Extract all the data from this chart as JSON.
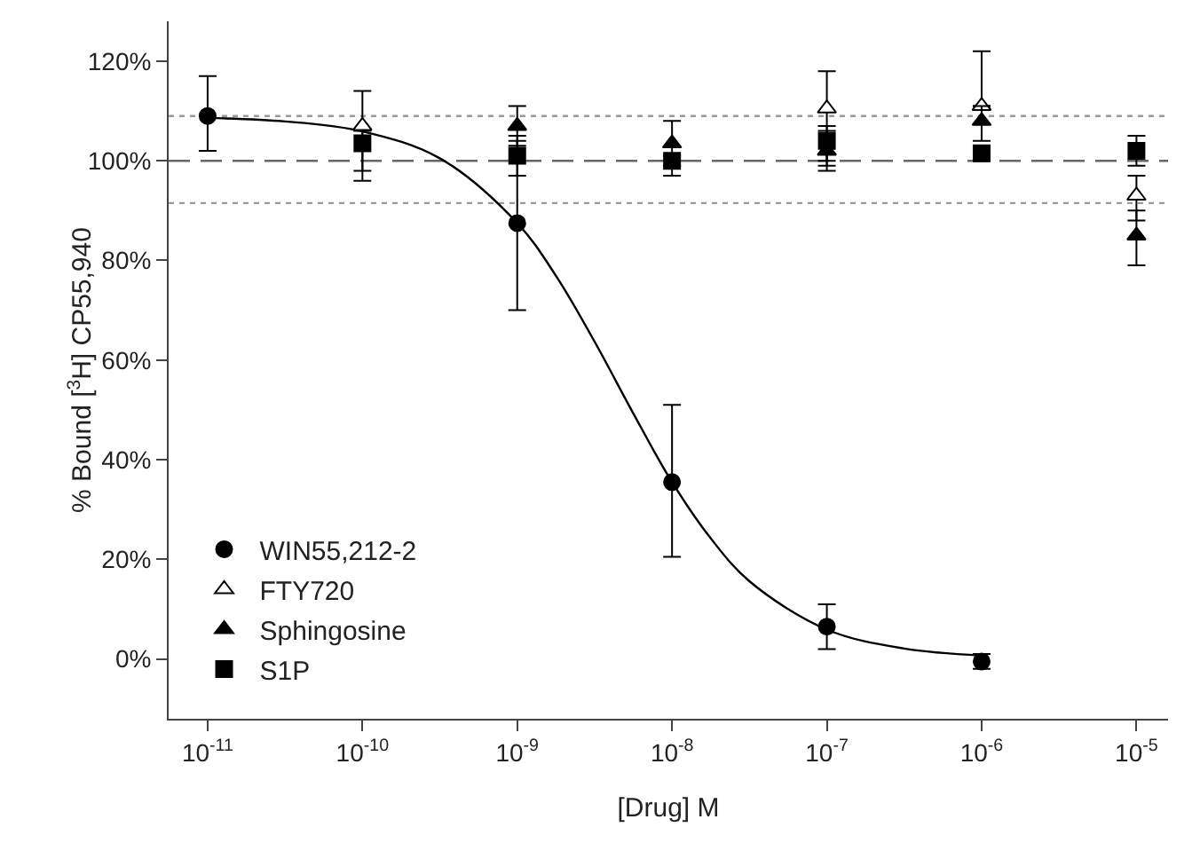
{
  "chart_data": {
    "type": "scatter",
    "xlabel": "[Drug] M",
    "ylabel": "% Bound [$^{3}$H] CP55,940",
    "x": [
      1e-11,
      1e-10,
      1e-09,
      1e-08,
      1e-07,
      1e-06,
      1e-05
    ],
    "series": [
      {
        "name": "WIN55,212-2",
        "color": "#000000",
        "marker": "circle",
        "values": [
          109,
          null,
          87.5,
          35.5,
          6.5,
          -0.5,
          null
        ],
        "errors": [
          [
            102,
            117
          ],
          null,
          [
            70,
            105
          ],
          [
            20.5,
            51
          ],
          [
            2,
            11
          ],
          [
            -2,
            1
          ],
          null
        ]
      },
      {
        "name": "FTY720",
        "color": "#ffffff",
        "marker": "triangle",
        "values": [
          null,
          107,
          null,
          null,
          110.5,
          111,
          93
        ],
        "errors": [
          null,
          [
            96,
            114
          ],
          null,
          null,
          [
            100,
            118
          ],
          [
            111,
            122
          ],
          [
            88,
            97
          ]
        ]
      },
      {
        "name": "Sphingosine",
        "color": "#000000",
        "marker": "triangle",
        "values": [
          null,
          null,
          107,
          103.5,
          102,
          108,
          85
        ],
        "errors": [
          null,
          null,
          [
            103,
            111
          ],
          [
            99,
            108
          ],
          [
            98,
            106
          ],
          [
            104,
            111
          ],
          [
            79,
            90
          ]
        ]
      },
      {
        "name": "S1P",
        "color": "#000000",
        "marker": "square",
        "values": [
          null,
          103.5,
          101,
          100,
          104,
          101.5,
          102
        ],
        "errors": [
          null,
          [
            98,
            106
          ],
          [
            97,
            104
          ],
          [
            97,
            101
          ],
          [
            99,
            107
          ],
          [
            100,
            103
          ],
          [
            99,
            105
          ]
        ]
      },
      {
        "type": "line",
        "color": "#000000",
        "marker": "none",
        "line_style": "solid",
        "x": [
          1e-11,
          3.16e-11,
          1e-10,
          3.16e-10,
          1e-09,
          1.78e-09,
          3.16e-09,
          5.62e-09,
          1e-08,
          1.78e-08,
          3.16e-08,
          1e-07,
          3.16e-07,
          1e-06
        ],
        "values": [
          108.6,
          107.9,
          105.9,
          100.5,
          87.5,
          76.9,
          63.7,
          49.3,
          35.5,
          24.2,
          15.6,
          5.9,
          2.1,
          0.7
        ]
      }
    ],
    "log": "x",
    "xlim": [
      5.6e-12,
      1.6e-05
    ],
    "xticks": [
      {
        "value": 1e-11,
        "label": "10$^{-11}$"
      },
      {
        "value": 1e-10,
        "label": "10$^{-10}$"
      },
      {
        "value": 1e-09,
        "label": "10$^{-9}$"
      },
      {
        "value": 1e-08,
        "label": "10$^{-8}$"
      },
      {
        "value": 1e-07,
        "label": "10$^{-7}$"
      },
      {
        "value": 1e-06,
        "label": "10$^{-6}$"
      },
      {
        "value": 1e-05,
        "label": "10$^{-5}$"
      }
    ],
    "ylim": [
      -12,
      128
    ],
    "yticks": [
      {
        "value": 0,
        "label": "0%"
      },
      {
        "value": 20,
        "label": "20%"
      },
      {
        "value": 40,
        "label": "40%"
      },
      {
        "value": 60,
        "label": "60%"
      },
      {
        "value": 80,
        "label": "80%"
      },
      {
        "value": 100,
        "label": "100%"
      },
      {
        "value": 120,
        "label": "120%"
      }
    ],
    "ref_lines": [
      {
        "axis": "y",
        "value": 100,
        "color": "#666666",
        "line_style": "dashed"
      },
      {
        "axis": "y",
        "value": 109,
        "color": "#999999",
        "line_style": "dotted"
      },
      {
        "axis": "y",
        "value": 91.5,
        "color": "#999999",
        "line_style": "dotted"
      }
    ],
    "grid": false,
    "legend": "bottom left"
  }
}
